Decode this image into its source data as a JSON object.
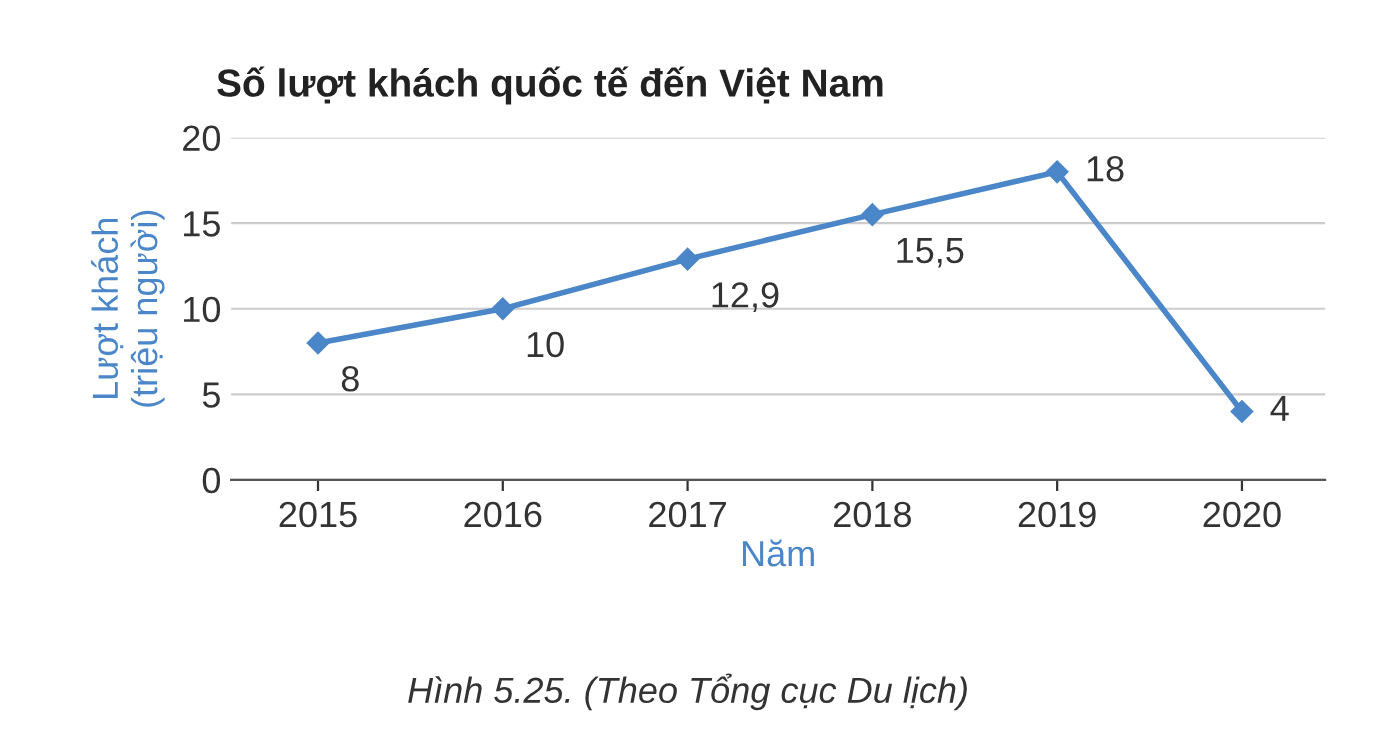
{
  "chart_data": {
    "type": "line",
    "title": "Số lượt khách quốc tế đến Việt Nam",
    "categories": [
      "2015",
      "2016",
      "2017",
      "2018",
      "2019",
      "2020"
    ],
    "series": [
      {
        "color": "#4a86c8",
        "values": [
          8,
          10,
          12.9,
          15.5,
          18,
          4
        ],
        "value_labels": [
          "8",
          "10",
          "12,9",
          "15,5",
          "18",
          "4"
        ]
      }
    ],
    "xlabel": "Năm",
    "ylabel": "Lượt khách\n(triệu người)",
    "ylim": [
      0,
      20
    ],
    "yticks": [
      0,
      5,
      10,
      15,
      20
    ],
    "grid": "y",
    "marker": "diamond",
    "line_style": "solid",
    "annotations": [
      "Hình 5.25. (Theo Tổng cục Du lịch)"
    ]
  }
}
